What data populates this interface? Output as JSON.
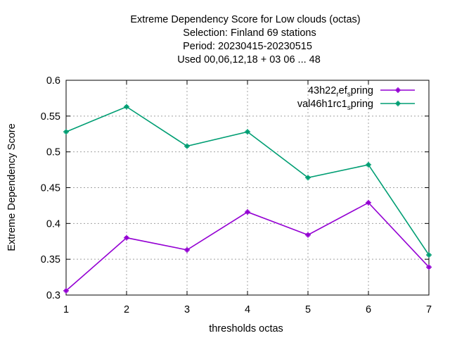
{
  "chart_data": {
    "type": "line",
    "title_lines": [
      "Extreme Dependency Score  for Low clouds (octas)",
      "Selection: Finland     69 stations",
      "Period: 20230415-20230515",
      "Used  00,06,12,18  + 03 06 ... 48"
    ],
    "xlabel": "thresholds octas",
    "ylabel": "Extreme Dependency Score",
    "x": [
      1,
      2,
      3,
      4,
      5,
      6,
      7
    ],
    "xlim": [
      1,
      7
    ],
    "ylim": [
      0.3,
      0.6
    ],
    "yticks": [
      0.3,
      0.35,
      0.4,
      0.45,
      0.5,
      0.55,
      0.6
    ],
    "ytick_labels": [
      "0.3",
      "0.35",
      "0.4",
      "0.45",
      "0.5",
      "0.55",
      "0.6"
    ],
    "xtick_labels": [
      "1",
      "2",
      "3",
      "4",
      "5",
      "6",
      "7"
    ],
    "grid": true,
    "legend_position": "top-right",
    "series": [
      {
        "name": "43h22_ref_spring",
        "legend_parts": [
          {
            "text": "43h22",
            "sub": false
          },
          {
            "text": "r",
            "sub": true
          },
          {
            "text": "ef",
            "sub": false
          },
          {
            "text": "s",
            "sub": true
          },
          {
            "text": "pring",
            "sub": false
          }
        ],
        "color": "#9400d3",
        "values": [
          0.306,
          0.38,
          0.363,
          0.416,
          0.384,
          0.429,
          0.339
        ]
      },
      {
        "name": "val46h1rc1_spring",
        "legend_parts": [
          {
            "text": "val46h1rc1",
            "sub": false
          },
          {
            "text": "s",
            "sub": true
          },
          {
            "text": "pring",
            "sub": false
          }
        ],
        "color": "#009e73",
        "values": [
          0.528,
          0.563,
          0.508,
          0.528,
          0.464,
          0.482,
          0.356
        ]
      }
    ]
  }
}
